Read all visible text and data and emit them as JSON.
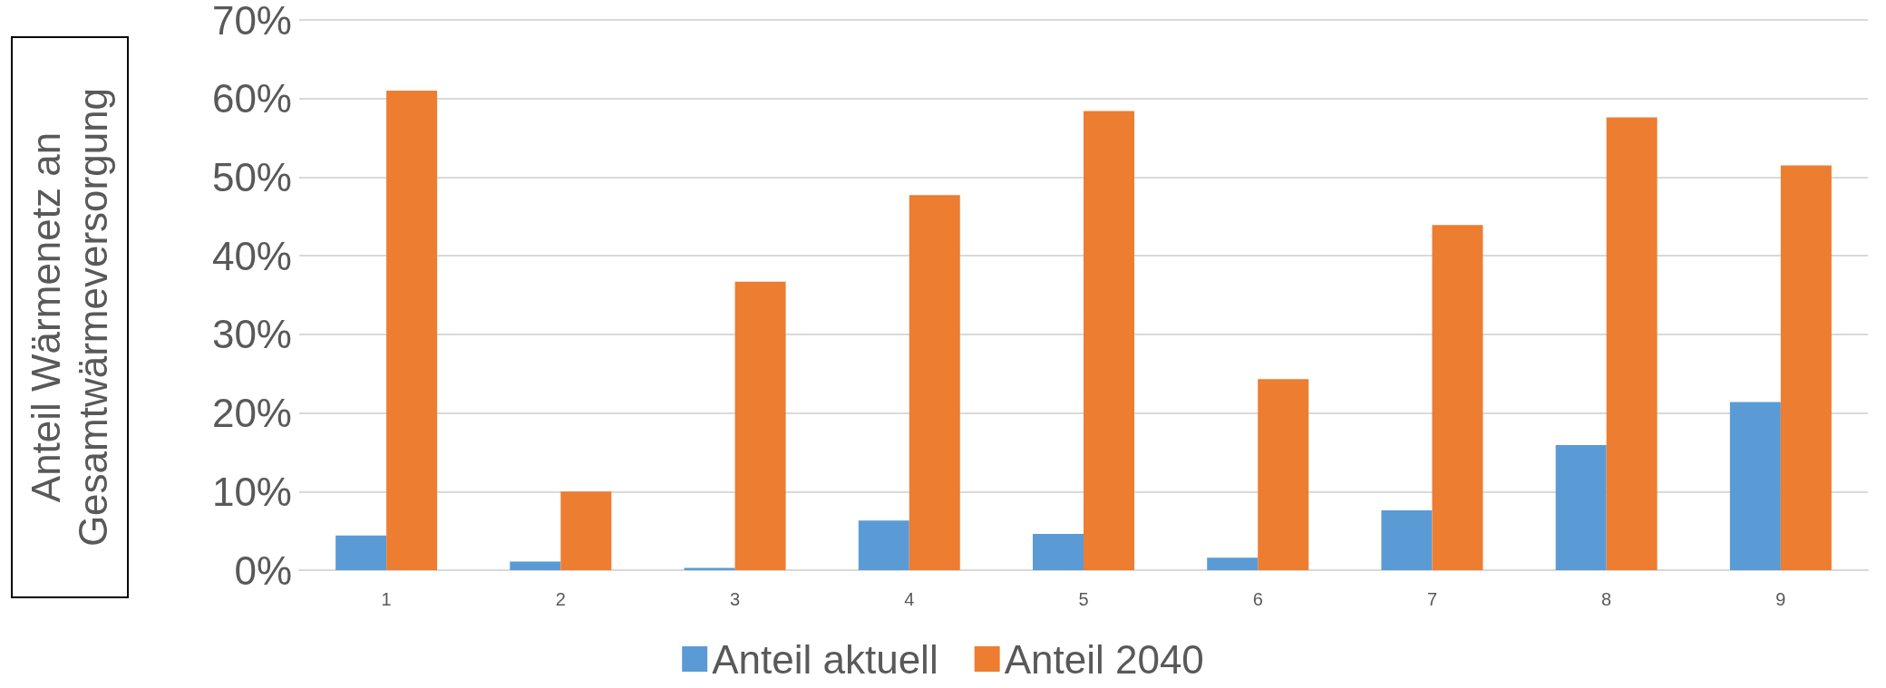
{
  "chart_data": {
    "type": "bar",
    "ylabel": "Anteil Wärmenetz an Gesamtwärmeversorgung",
    "categories": [
      "1",
      "2",
      "3",
      "4",
      "5",
      "6",
      "7",
      "8",
      "9"
    ],
    "series": [
      {
        "name": "Anteil aktuell",
        "color": "#5b9bd5",
        "values": [
          4.4,
          1.1,
          0.3,
          6.3,
          4.6,
          1.6,
          7.6,
          15.9,
          21.4
        ]
      },
      {
        "name": "Anteil 2040",
        "color": "#ed7d31",
        "values": [
          61,
          10,
          36.7,
          47.7,
          58.4,
          24.3,
          43.9,
          57.6,
          51.5
        ]
      }
    ],
    "ylim": [
      0,
      70
    ],
    "yticks": [
      {
        "value": 0,
        "label": "0%"
      },
      {
        "value": 10,
        "label": "10%"
      },
      {
        "value": 20,
        "label": "20%"
      },
      {
        "value": 30,
        "label": "30%"
      },
      {
        "value": 40,
        "label": "40%"
      },
      {
        "value": 50,
        "label": "50%"
      },
      {
        "value": 60,
        "label": "60%"
      },
      {
        "value": 70,
        "label": "70%"
      }
    ],
    "grid": "y",
    "legend": "bottom"
  }
}
